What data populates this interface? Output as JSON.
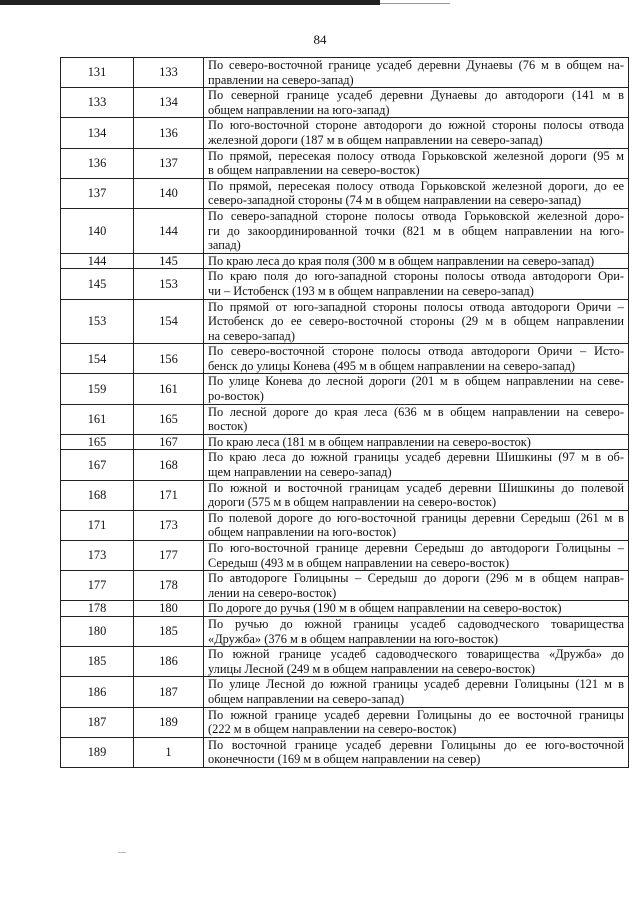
{
  "page_number": "84",
  "table": {
    "rows": [
      {
        "from": "131",
        "to": "133",
        "lines": [
          "По северо-восточной границе усадеб деревни Дунаевы (76 м в общем на-",
          "правлении на северо-запад)"
        ]
      },
      {
        "from": "133",
        "to": "134",
        "lines": [
          "По северной границе усадеб деревни Дунаевы до автодороги (141 м в",
          "общем направлении на юго-запад)"
        ]
      },
      {
        "from": "134",
        "to": "136",
        "lines": [
          "По юго-восточной стороне автодороги до южной стороны полосы отвода",
          "железной дороги (187 м в общем направлении на северо-запад)"
        ]
      },
      {
        "from": "136",
        "to": "137",
        "lines": [
          "По прямой, пересекая полосу отвода Горьковской железной дороги (95 м",
          "в общем направлении на северо-восток)"
        ]
      },
      {
        "from": "137",
        "to": "140",
        "lines": [
          "По прямой, пересекая полосу отвода Горьковской железной дороги, до ее",
          "северо-западной стороны (74 м в общем направлении на северо-запад)"
        ]
      },
      {
        "from": "140",
        "to": "144",
        "lines": [
          "По северо-западной стороне полосы отвода Горьковской железной доро-",
          "ги до закоординированной точки (821 м в общем направлении на юго-",
          "запад)"
        ]
      },
      {
        "from": "144",
        "to": "145",
        "lines": [
          "По краю леса до края поля (300 м в общем направлении на северо-запад)"
        ]
      },
      {
        "from": "145",
        "to": "153",
        "lines": [
          "По краю поля до юго-западной стороны полосы отвода автодороги Ори-",
          "чи – Истобенск (193 м в общем направлении на северо-запад)"
        ]
      },
      {
        "from": "153",
        "to": "154",
        "lines": [
          "По прямой от юго-западной стороны полосы отвода автодороги Оричи –",
          "Истобенск до ее северо-восточной стороны (29 м в общем направлении",
          "на северо-запад)"
        ]
      },
      {
        "from": "154",
        "to": "156",
        "lines": [
          "По северо-восточной стороне полосы отвода автодороги Оричи – Исто-",
          "бенск до улицы Конева (495 м в общем направлении на северо-запад)"
        ]
      },
      {
        "from": "159",
        "to": "161",
        "lines": [
          "По улице Конева до лесной дороги (201 м в общем направлении на севе-",
          "ро-восток)"
        ]
      },
      {
        "from": "161",
        "to": "165",
        "lines": [
          "По лесной дороге до края леса (636 м в общем направлении на северо-",
          "восток)"
        ]
      },
      {
        "from": "165",
        "to": "167",
        "lines": [
          "По краю леса (181 м в общем направлении на северо-восток)"
        ]
      },
      {
        "from": "167",
        "to": "168",
        "lines": [
          "По краю леса до южной границы усадеб деревни Шишкины (97 м в об-",
          "щем направлении на северо-запад)"
        ]
      },
      {
        "from": "168",
        "to": "171",
        "lines": [
          "По южной и восточной границам усадеб деревни Шишкины до полевой",
          "дороги (575 м в общем направлении на северо-восток)"
        ]
      },
      {
        "from": "171",
        "to": "173",
        "lines": [
          "По полевой дороге до юго-восточной границы деревни Середыш (261 м в",
          "общем направлении на юго-восток)"
        ]
      },
      {
        "from": "173",
        "to": "177",
        "lines": [
          "По юго-восточной границе деревни Середыш до автодороги Голицыны –",
          "Середыш  (493 м в общем направлении на северо-восток)"
        ]
      },
      {
        "from": "177",
        "to": "178",
        "lines": [
          "По автодороге Голицыны – Середыш до дороги  (296 м в общем направ-",
          "лении на северо-восток)"
        ]
      },
      {
        "from": "178",
        "to": "180",
        "lines": [
          "По дороге до ручья  (190 м в общем направлении на северо-восток)"
        ]
      },
      {
        "from": "180",
        "to": "185",
        "lines": [
          "По ручью до южной границы усадеб садоводческого товарищества",
          "«Дружба»  (376 м в общем направлении на юго-восток)"
        ]
      },
      {
        "from": "185",
        "to": "186",
        "lines": [
          "По южной границе усадеб садоводческого товарищества «Дружба» до",
          "улицы Лесной (249 м в общем направлении на северо-восток)"
        ]
      },
      {
        "from": "186",
        "to": "187",
        "lines": [
          "По улице Лесной до южной границы усадеб деревни Голицыны (121 м в",
          "общем направлении на северо-запад)"
        ]
      },
      {
        "from": "187",
        "to": "189",
        "lines": [
          "По южной границе усадеб деревни Голицыны до ее восточной границы",
          "(222 м в общем направлении на северо-восток)"
        ]
      },
      {
        "from": "189",
        "to": "1",
        "lines": [
          "По восточной границе усадеб деревни Голицыны до ее юго-восточной",
          "оконечности (169 м в общем направлении на север)"
        ]
      }
    ]
  }
}
